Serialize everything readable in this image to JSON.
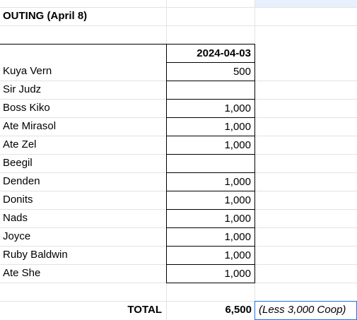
{
  "sheet": {
    "title": "OUTING (April 8)",
    "date_header": "2024-04-03",
    "rows": [
      {
        "name": "Kuya Vern",
        "amount": "500"
      },
      {
        "name": "Sir Judz",
        "amount": ""
      },
      {
        "name": "Boss Kiko",
        "amount": "1,000"
      },
      {
        "name": "Ate Mirasol",
        "amount": "1,000"
      },
      {
        "name": "Ate Zel",
        "amount": "1,000"
      },
      {
        "name": "Beegil",
        "amount": ""
      },
      {
        "name": "Denden",
        "amount": "1,000"
      },
      {
        "name": "Donits",
        "amount": "1,000"
      },
      {
        "name": "Nads",
        "amount": "1,000"
      },
      {
        "name": "Joyce",
        "amount": "1,000"
      },
      {
        "name": "Ruby Baldwin",
        "amount": "1,000"
      },
      {
        "name": "Ate She",
        "amount": "1,000"
      }
    ],
    "total_label": "TOTAL",
    "total_value": "6,500",
    "total_note": "(Less 3,000 Coop)"
  },
  "colors": {
    "gridline": "#e2e2e2",
    "border": "#000000",
    "selection": "#1a73e8"
  }
}
